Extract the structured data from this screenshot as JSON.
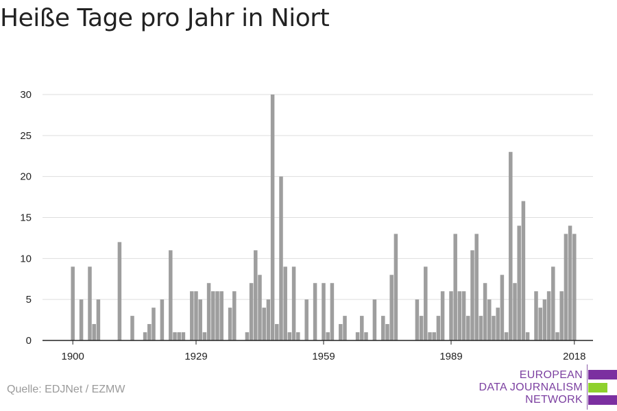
{
  "title": "Heiße Tage pro Jahr in Niort",
  "source": "Quelle: EDJNet / EZMW",
  "logo": {
    "lines": [
      "EUROPEAN",
      "DATA JOURNALISM",
      "NETWORK"
    ],
    "bar_colors": [
      "#7b2fa0",
      "#8ed12d",
      "#7b2fa0"
    ]
  },
  "colors": {
    "bar": "#9e9e9e",
    "grid": "#dddddd",
    "axis": "#222222",
    "text": "#222222"
  },
  "chart_data": {
    "type": "bar",
    "title": "Heiße Tage pro Jahr in Niort",
    "xlabel": "",
    "ylabel": "",
    "xlim": [
      1894,
      2023
    ],
    "ylim": [
      0,
      30
    ],
    "yticks": [
      0,
      5,
      10,
      15,
      20,
      25,
      30
    ],
    "xticks": [
      1900,
      1929,
      1959,
      1989,
      2018
    ],
    "grid": true,
    "years": [
      1894,
      1895,
      1896,
      1897,
      1898,
      1899,
      1900,
      1901,
      1902,
      1903,
      1904,
      1905,
      1906,
      1907,
      1908,
      1909,
      1910,
      1911,
      1912,
      1913,
      1914,
      1915,
      1916,
      1917,
      1918,
      1919,
      1920,
      1921,
      1922,
      1923,
      1924,
      1925,
      1926,
      1927,
      1928,
      1929,
      1930,
      1931,
      1932,
      1933,
      1934,
      1935,
      1936,
      1937,
      1938,
      1939,
      1940,
      1941,
      1942,
      1943,
      1944,
      1945,
      1946,
      1947,
      1948,
      1949,
      1950,
      1951,
      1952,
      1953,
      1954,
      1955,
      1956,
      1957,
      1958,
      1959,
      1960,
      1961,
      1962,
      1963,
      1964,
      1965,
      1966,
      1967,
      1968,
      1969,
      1970,
      1971,
      1972,
      1973,
      1974,
      1975,
      1976,
      1977,
      1978,
      1979,
      1980,
      1981,
      1982,
      1983,
      1984,
      1985,
      1986,
      1987,
      1988,
      1989,
      1990,
      1991,
      1992,
      1993,
      1994,
      1995,
      1996,
      1997,
      1998,
      1999,
      2000,
      2001,
      2002,
      2003,
      2004,
      2005,
      2006,
      2007,
      2008,
      2009,
      2010,
      2011,
      2012,
      2013,
      2014,
      2015,
      2016,
      2017,
      2018,
      2019,
      2020,
      2021,
      2022
    ],
    "values": [
      0,
      0,
      0,
      0,
      0,
      0,
      9,
      0,
      5,
      0,
      9,
      2,
      5,
      0,
      0,
      0,
      0,
      12,
      0,
      0,
      3,
      0,
      0,
      1,
      2,
      4,
      0,
      5,
      0,
      11,
      1,
      1,
      1,
      0,
      6,
      6,
      5,
      1,
      7,
      6,
      6,
      6,
      0,
      4,
      6,
      0,
      0,
      1,
      7,
      11,
      8,
      4,
      5,
      30,
      2,
      20,
      9,
      1,
      9,
      1,
      0,
      5,
      0,
      7,
      0,
      7,
      1,
      7,
      0,
      2,
      3,
      0,
      0,
      1,
      3,
      1,
      0,
      5,
      0,
      3,
      2,
      8,
      13,
      0,
      0,
      0,
      0,
      5,
      3,
      9,
      1,
      1,
      3,
      6,
      0,
      6,
      13,
      6,
      6,
      3,
      11,
      13,
      3,
      7,
      5,
      3,
      4,
      8,
      1,
      23,
      7,
      14,
      17,
      1,
      0,
      6,
      4,
      5,
      6,
      9,
      1,
      6,
      13,
      14,
      13,
      0,
      0,
      0,
      0
    ]
  }
}
